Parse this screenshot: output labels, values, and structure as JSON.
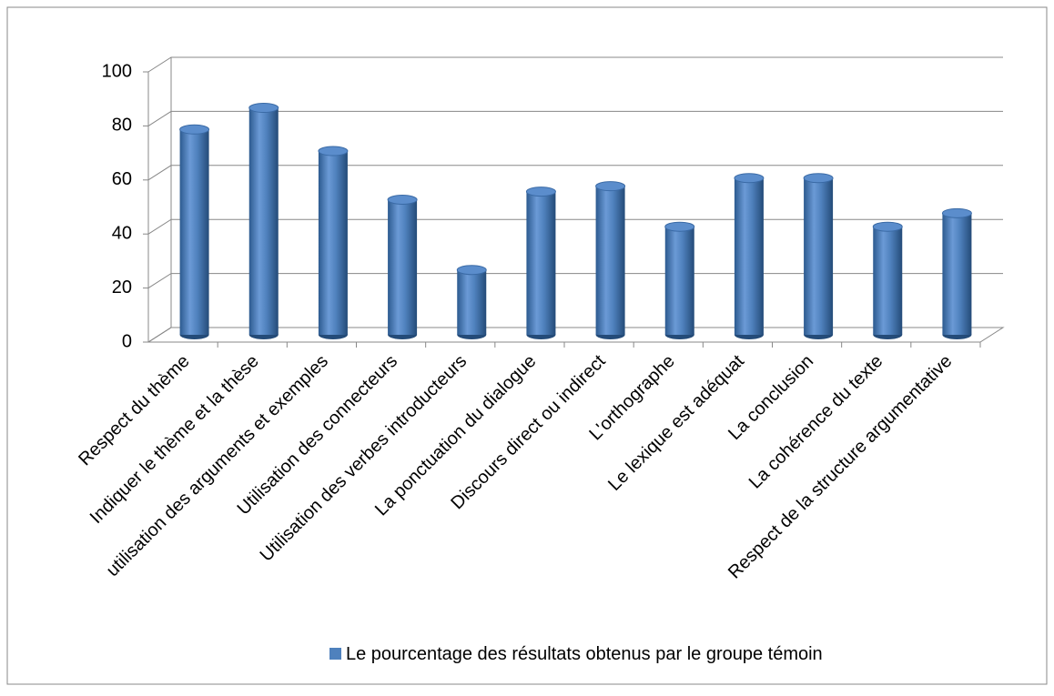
{
  "chart_data": {
    "type": "bar",
    "categories": [
      "Respect du thème",
      "Indiquer le thème et la thèse",
      "utilisation des arguments et exemples",
      "Utilisation des connecteurs",
      "Utilisation des verbes introducteurs",
      "La ponctuation du dialogue",
      "Discours direct ou indirect",
      "L'orthographe",
      "Le lexique est adéquat",
      "La conclusion",
      "La cohérence du texte",
      "Respect de la structure argumentative"
    ],
    "series": [
      {
        "name": "Le pourcentage des résultats obtenus par le groupe témoin",
        "color": "#4f81bd",
        "values": [
          76,
          84,
          68,
          50,
          24,
          53,
          55,
          40,
          58,
          58,
          40,
          45
        ]
      }
    ],
    "ylim": [
      0,
      100
    ],
    "yticks": [
      0,
      20,
      40,
      60,
      80,
      100
    ],
    "grid": true
  }
}
